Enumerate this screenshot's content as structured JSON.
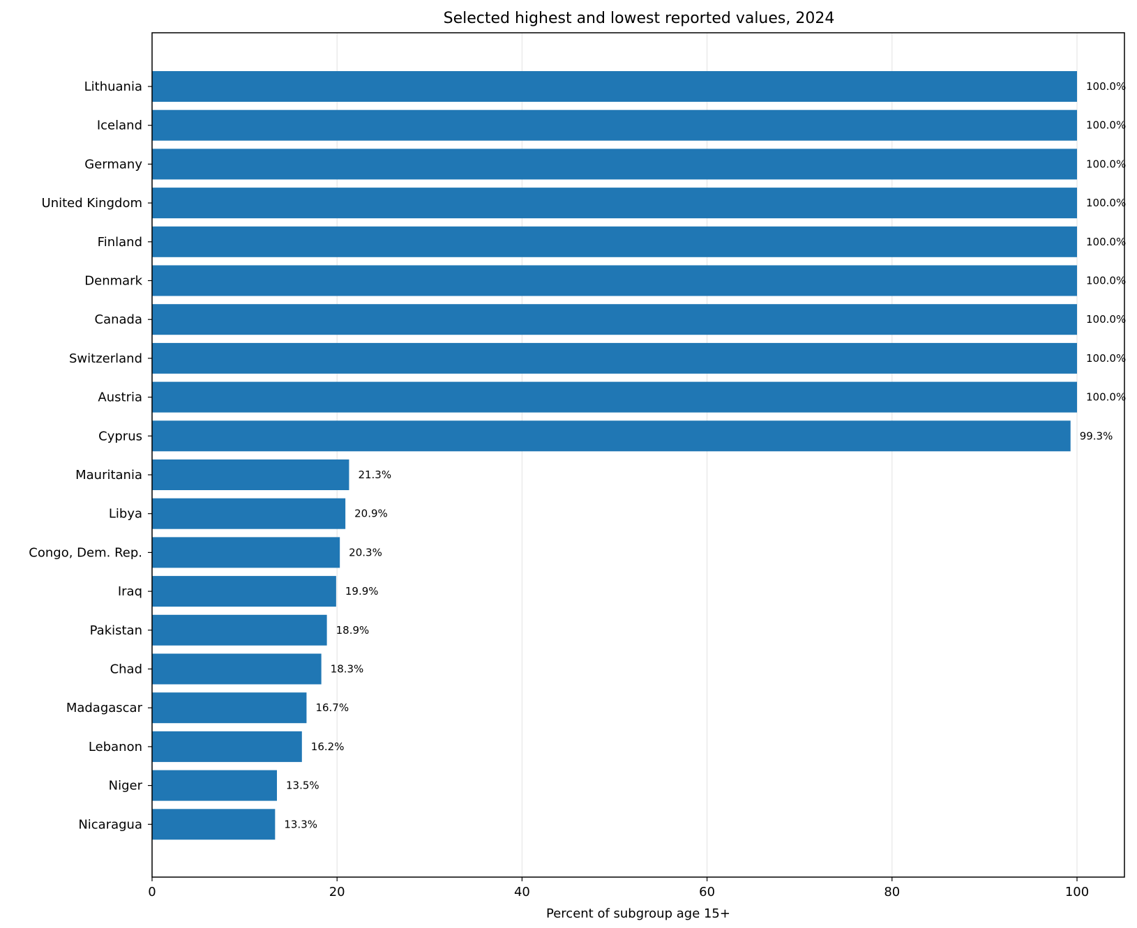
{
  "chart_data": {
    "type": "bar",
    "orientation": "horizontal",
    "title": "Selected highest and lowest reported values, 2024",
    "xlabel": "Percent of subgroup age 15+",
    "ylabel": "",
    "xlim": [
      0,
      105
    ],
    "xticks": [
      0,
      20,
      40,
      60,
      80,
      100
    ],
    "grid": "vertical",
    "bar_color": "#2077b4",
    "categories": [
      "Lithuania",
      "Iceland",
      "Germany",
      "United Kingdom",
      "Finland",
      "Denmark",
      "Canada",
      "Switzerland",
      "Austria",
      "Cyprus",
      "Mauritania",
      "Libya",
      "Congo, Dem. Rep.",
      "Iraq",
      "Pakistan",
      "Chad",
      "Madagascar",
      "Lebanon",
      "Niger",
      "Nicaragua"
    ],
    "values": [
      100.0,
      100.0,
      100.0,
      100.0,
      100.0,
      100.0,
      100.0,
      100.0,
      100.0,
      99.3,
      21.3,
      20.9,
      20.3,
      19.9,
      18.9,
      18.3,
      16.7,
      16.2,
      13.5,
      13.3
    ],
    "data_labels": [
      "100.0%",
      "100.0%",
      "100.0%",
      "100.0%",
      "100.0%",
      "100.0%",
      "100.0%",
      "100.0%",
      "100.0%",
      "99.3%",
      "21.3%",
      "20.9%",
      "20.3%",
      "19.9%",
      "18.9%",
      "18.3%",
      "16.7%",
      "16.2%",
      "13.5%",
      "13.3%"
    ]
  }
}
